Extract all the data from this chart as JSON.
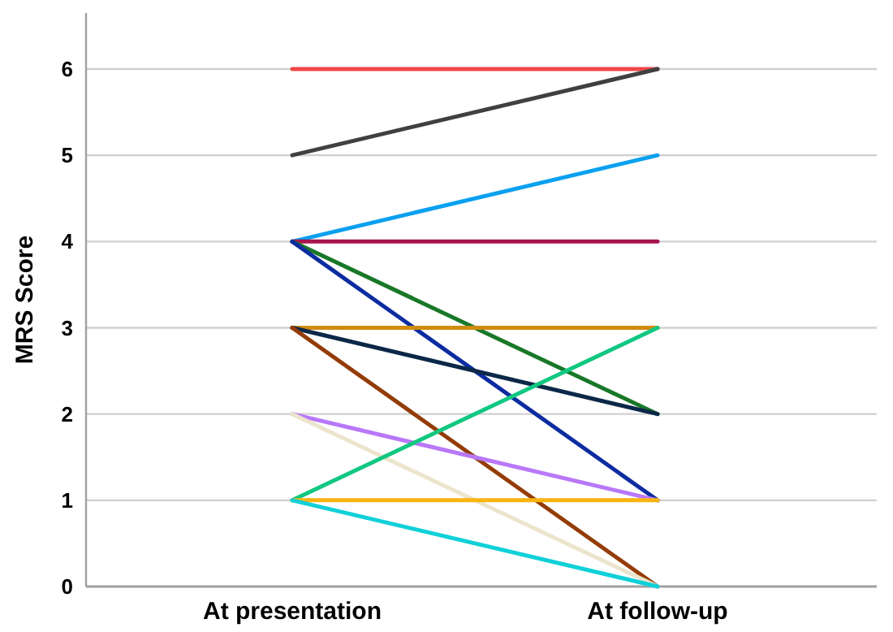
{
  "chart_data": {
    "type": "line",
    "ylabel": "MRS Score",
    "categories": [
      "At presentation",
      "At follow-up"
    ],
    "ylim": [
      0,
      6.65
    ],
    "yticks": [
      0,
      1,
      2,
      3,
      4,
      5,
      6
    ],
    "grid": "y",
    "marker": "none",
    "line_style": "solid",
    "series": [
      {
        "color": "#f04848",
        "values": [
          6,
          6
        ]
      },
      {
        "color": "#404040",
        "values": [
          5,
          6
        ]
      },
      {
        "color": "#0aa0f0",
        "values": [
          4,
          5
        ]
      },
      {
        "color": "#a81450",
        "values": [
          4,
          4
        ]
      },
      {
        "color": "#187828",
        "values": [
          4,
          2
        ]
      },
      {
        "color": "#0c2ca0",
        "values": [
          4,
          1
        ]
      },
      {
        "color": "#d08c10",
        "values": [
          3,
          3
        ]
      },
      {
        "color": "#0c2848",
        "values": [
          3,
          2
        ]
      },
      {
        "color": "#943c08",
        "values": [
          3,
          0
        ]
      },
      {
        "color": "#b878f8",
        "values": [
          2,
          1
        ]
      },
      {
        "color": "#ece4cc",
        "values": [
          2,
          0
        ]
      },
      {
        "color": "#10c880",
        "values": [
          1,
          3
        ]
      },
      {
        "color": "#f8b410",
        "values": [
          1,
          1
        ]
      },
      {
        "color": "#10d0d8",
        "values": [
          1,
          0
        ]
      }
    ]
  }
}
